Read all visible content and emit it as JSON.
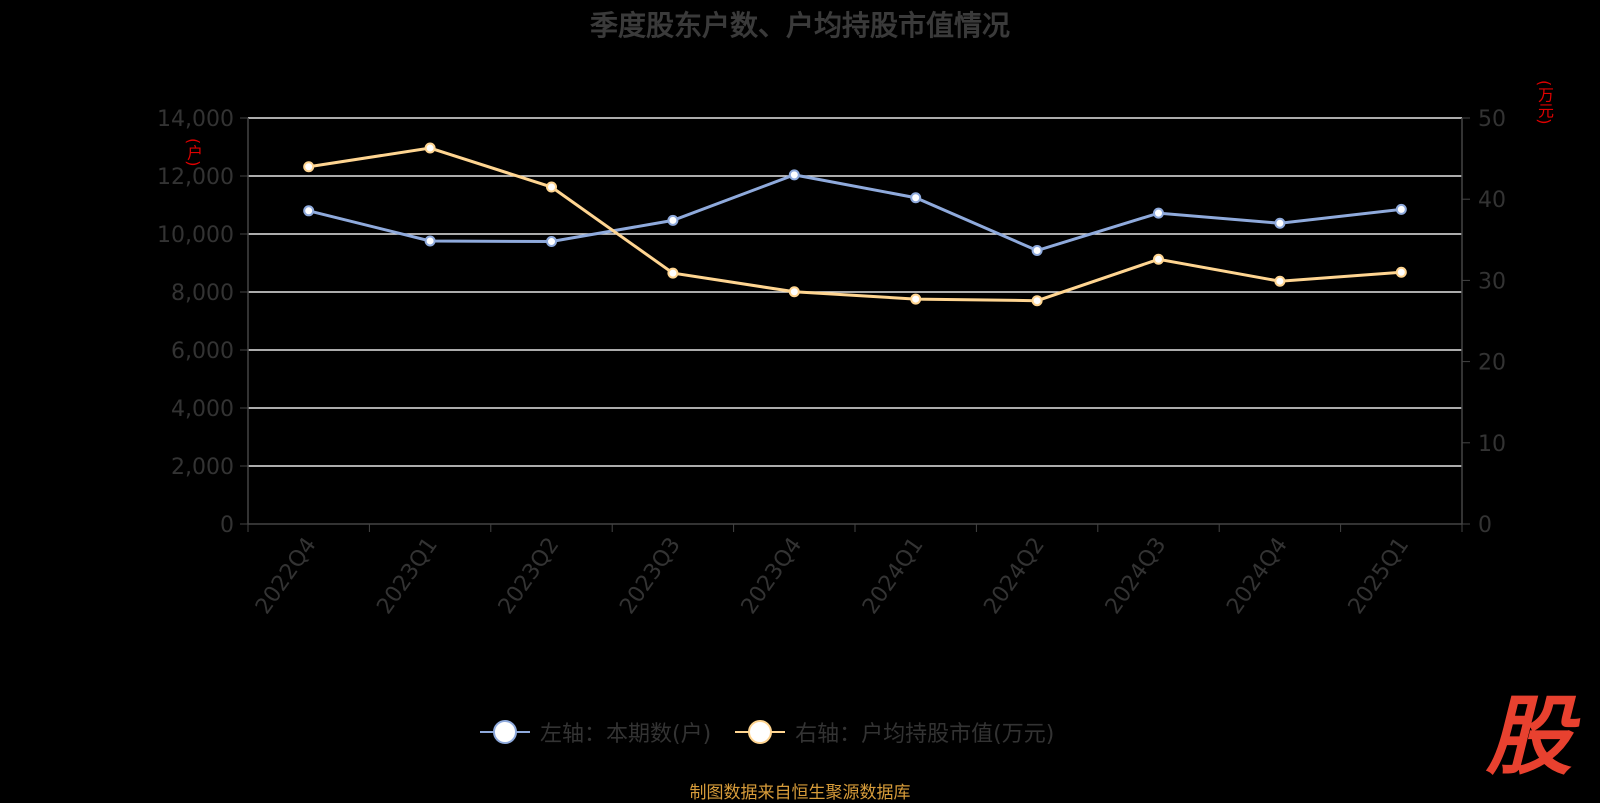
{
  "title": "季度股东户数、户均持股市值情况",
  "left_unit": "(户)",
  "right_unit": "(万元)",
  "legend": [
    {
      "label": "左轴：本期数(户)",
      "color": "#8faadc"
    },
    {
      "label": "右轴：户均持股市值(万元)",
      "color": "#ffd591"
    }
  ],
  "source": "制图数据来自恒生聚源数据库",
  "logo": "股",
  "chart_data": {
    "type": "line",
    "categories": [
      "2022Q4",
      "2023Q1",
      "2023Q2",
      "2023Q3",
      "2023Q4",
      "2024Q1",
      "2024Q2",
      "2024Q3",
      "2024Q4",
      "2025Q1"
    ],
    "series": [
      {
        "name": "左轴：本期数(户)",
        "axis": "left",
        "values": [
          10800,
          9760,
          9740,
          10470,
          12040,
          11250,
          9430,
          10720,
          10370,
          10850
        ]
      },
      {
        "name": "右轴：户均持股市值(万元)",
        "axis": "right",
        "values": [
          44.0,
          46.3,
          41.5,
          30.9,
          28.6,
          27.7,
          27.5,
          32.6,
          29.9,
          31.0
        ]
      }
    ],
    "left_axis": {
      "ylim": [
        0,
        14000
      ],
      "ticks": [
        "0",
        "2,000",
        "4,000",
        "6,000",
        "8,000",
        "10,000",
        "12,000",
        "14,000"
      ]
    },
    "right_axis": {
      "ylim": [
        0,
        50
      ],
      "ticks": [
        "0",
        "10",
        "20",
        "30",
        "40",
        "50"
      ]
    },
    "grid": true,
    "legend_position": "bottom"
  }
}
